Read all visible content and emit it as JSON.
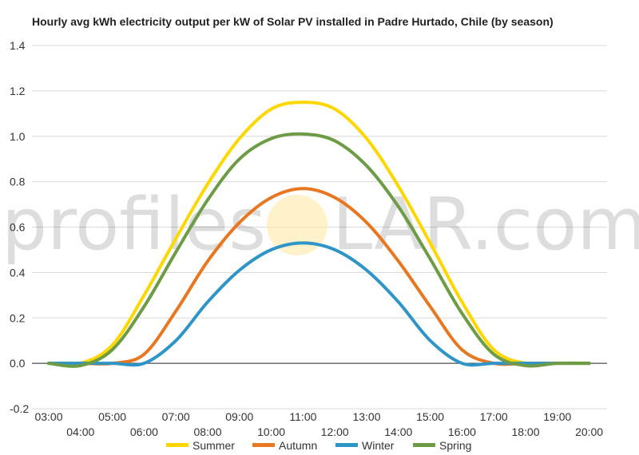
{
  "title": "Hourly avg kWh electricity output per kW of Solar PV installed in Padre Hurtado, Chile (by season)",
  "watermark": {
    "left": "profiles",
    "right": "LAR.com"
  },
  "chart_data": {
    "type": "line",
    "title": "Hourly avg kWh electricity output per kW of Solar PV installed in Padre Hurtado, Chile (by season)",
    "xlabel": "",
    "ylabel": "",
    "ylim": [
      -0.2,
      1.4
    ],
    "yticks": [
      -0.2,
      0.0,
      0.2,
      0.4,
      0.6,
      0.8,
      1.0,
      1.2,
      1.4
    ],
    "y_tick_labels": [
      "-0.2",
      "0.0",
      "0.2",
      "0.4",
      "0.6",
      "0.8",
      "1.0",
      "1.2",
      "1.4"
    ],
    "categories": [
      "03:00",
      "04:00",
      "05:00",
      "06:00",
      "07:00",
      "08:00",
      "09:00",
      "10:00",
      "11:00",
      "12:00",
      "13:00",
      "14:00",
      "15:00",
      "16:00",
      "17:00",
      "18:00",
      "19:00",
      "20:00"
    ],
    "grid": true,
    "legend": "bottom",
    "series": [
      {
        "name": "Summer",
        "color": "#FFD700",
        "values": [
          0.0,
          0.0,
          0.08,
          0.3,
          0.55,
          0.79,
          0.99,
          1.12,
          1.15,
          1.12,
          0.99,
          0.78,
          0.53,
          0.27,
          0.06,
          0.0,
          0.0,
          0.0
        ]
      },
      {
        "name": "Autumn",
        "color": "#E87722",
        "values": [
          0.0,
          0.0,
          0.0,
          0.04,
          0.23,
          0.45,
          0.62,
          0.73,
          0.77,
          0.73,
          0.62,
          0.45,
          0.25,
          0.06,
          0.0,
          0.0,
          0.0,
          0.0
        ]
      },
      {
        "name": "Winter",
        "color": "#2E95C6",
        "values": [
          0.0,
          0.0,
          0.0,
          0.0,
          0.1,
          0.27,
          0.41,
          0.5,
          0.53,
          0.5,
          0.41,
          0.27,
          0.1,
          0.0,
          0.0,
          0.0,
          0.0,
          0.0
        ]
      },
      {
        "name": "Spring",
        "color": "#6E9B45",
        "values": [
          0.0,
          -0.01,
          0.06,
          0.25,
          0.49,
          0.72,
          0.9,
          0.99,
          1.01,
          0.98,
          0.87,
          0.69,
          0.46,
          0.22,
          0.04,
          -0.01,
          0.0,
          0.0
        ]
      }
    ]
  }
}
